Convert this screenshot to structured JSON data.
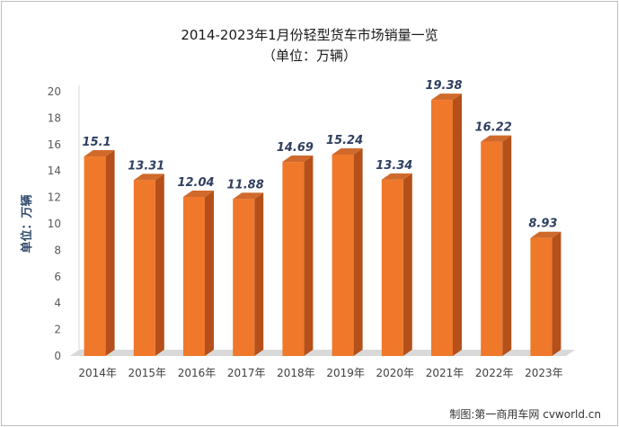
{
  "chart_data": {
    "type": "bar",
    "title": "2014-2023年1月份轻型货车市场销量一览",
    "subtitle": "（单位：万辆）",
    "ylabel": "单位：万辆",
    "xlabel": "",
    "categories": [
      "2014年",
      "2015年",
      "2016年",
      "2017年",
      "2018年",
      "2019年",
      "2020年",
      "2021年",
      "2022年",
      "2023年"
    ],
    "values": [
      15.1,
      13.31,
      12.04,
      11.88,
      14.69,
      15.24,
      13.34,
      19.38,
      16.22,
      8.93
    ],
    "value_labels": [
      "15.1",
      "13.31",
      "12.04",
      "11.88",
      "14.69",
      "15.24",
      "13.34",
      "19.38",
      "16.22",
      "8.93"
    ],
    "yticks": [
      "0",
      "2",
      "4",
      "6",
      "8",
      "10",
      "12",
      "14",
      "16",
      "18",
      "20"
    ],
    "ylim": [
      0,
      20
    ],
    "grid": false,
    "legend": "none",
    "colors": {
      "bar_front": "#f0782a",
      "bar_side": "#b5501a",
      "bar_top": "#d06a2c",
      "floor": "#d9d9d9",
      "label": "#2f3f5f",
      "axis_text": "#595959"
    }
  },
  "credit": "制图:第一商用车网 cvworld.cn"
}
